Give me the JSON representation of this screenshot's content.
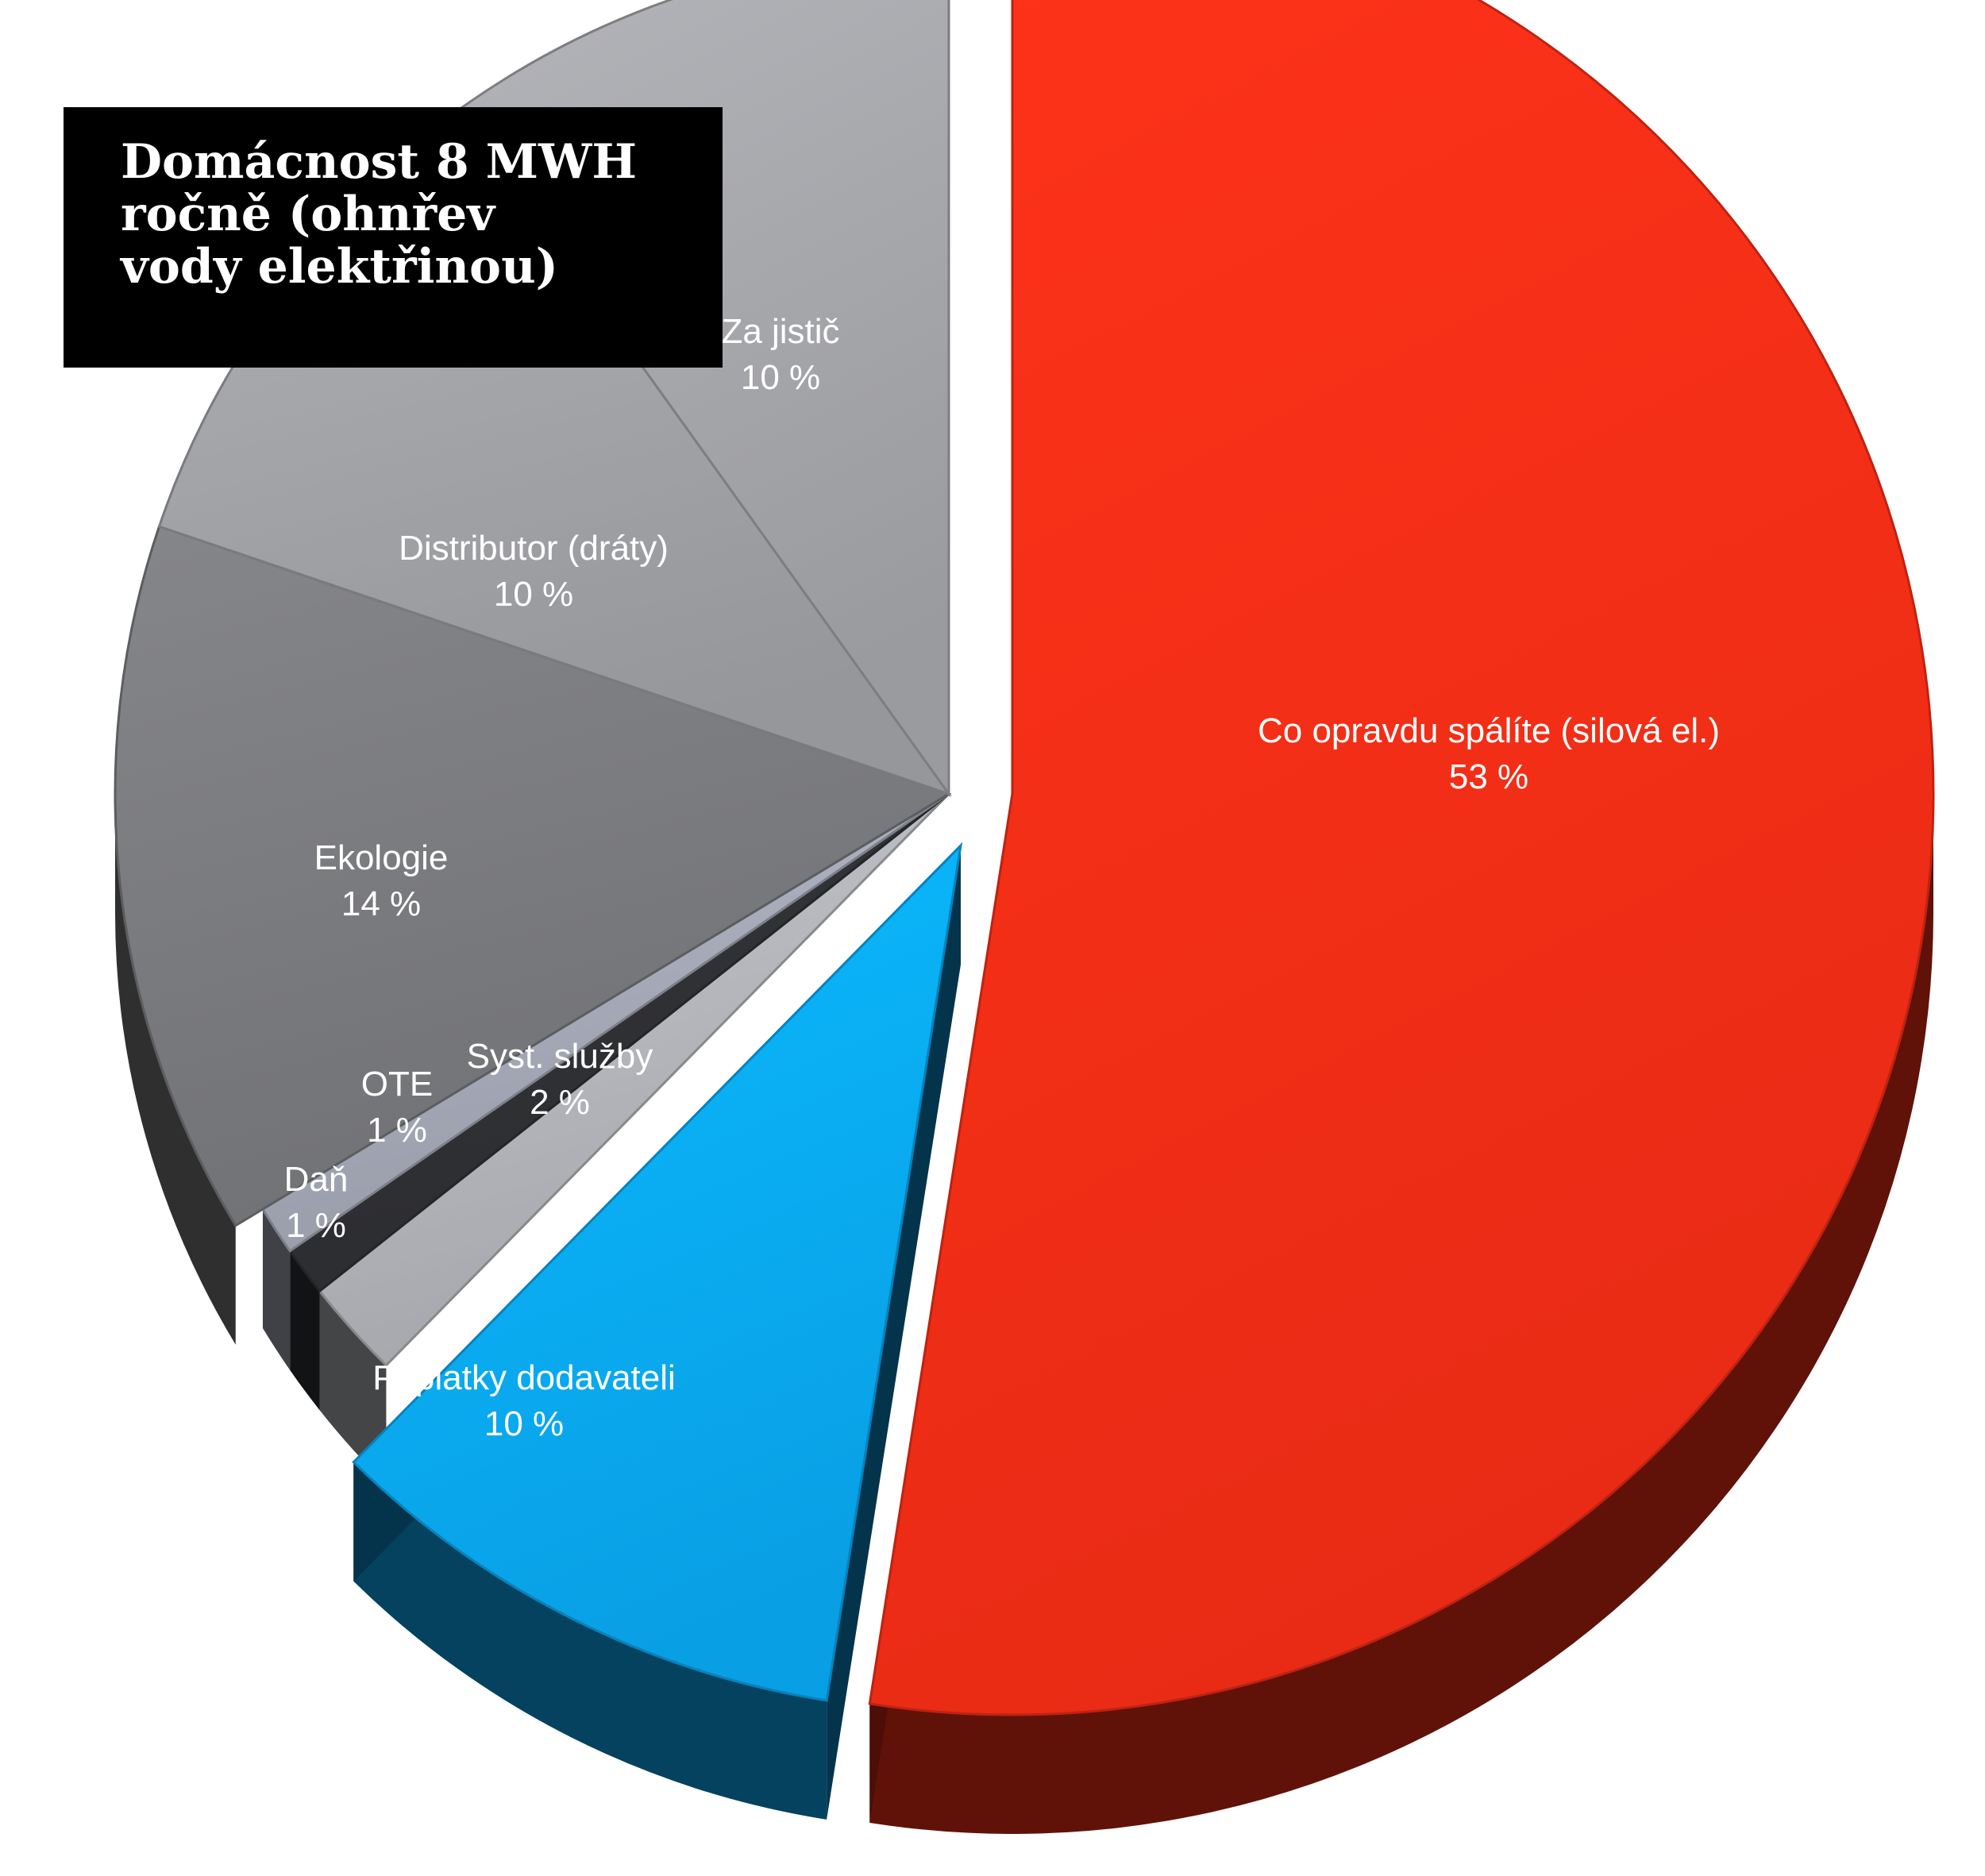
{
  "title": {
    "lines": [
      "Domácnost 8 MWH",
      "ročně (ohnřev",
      "vody elektřinou)"
    ]
  },
  "chart_data": {
    "type": "pie",
    "style": "3d-exploded",
    "title": "Domácnost 8 MWH ročně (ohnřev vody elektřinou)",
    "slices": [
      {
        "label": "Co opravdu spálíte (silová el.)",
        "value": 53,
        "value_text": "53 %",
        "color": "#fd2f17",
        "exploded": true
      },
      {
        "label": "Poplatky dodavateli",
        "value": 10,
        "value_text": "10 %",
        "color": "#0aadf9",
        "exploded": true
      },
      {
        "label": "Syst. služby",
        "value": 2,
        "value_text": "2 %",
        "color": "#b4b6bb",
        "exploded": false
      },
      {
        "label": "OTE",
        "value": 1,
        "value_text": "1 %",
        "color": "#303134",
        "exploded": false
      },
      {
        "label": "Daň",
        "value": 1,
        "value_text": "1 %",
        "color": "#a6aab8",
        "exploded": false
      },
      {
        "label": "Ekologie",
        "value": 14,
        "value_text": "14 %",
        "color": "#7b7c7f",
        "exploded": false
      },
      {
        "label": "Distributor (dráty)",
        "value": 10,
        "value_text": "10 %",
        "color": "#a3a4a8",
        "exploded": false
      },
      {
        "label": "Za jistič",
        "value": 10,
        "value_text": "10 %",
        "color": "#a7a8ac",
        "exploded": false
      }
    ]
  }
}
